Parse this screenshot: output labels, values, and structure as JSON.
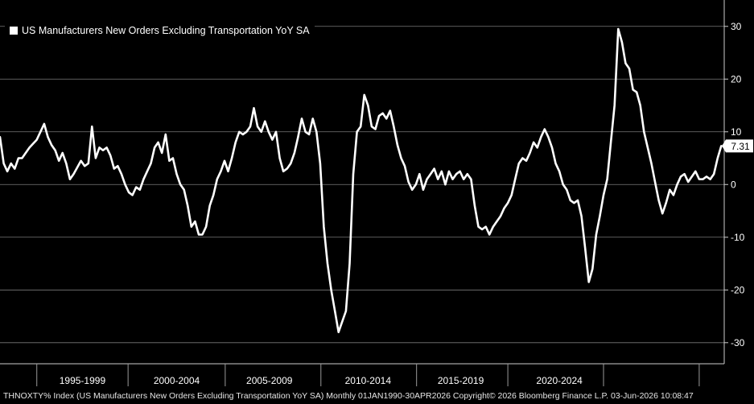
{
  "chart_data": {
    "type": "line",
    "ticker": "THNOXTY% Index",
    "series": [
      {
        "name": "US Manufacturers New Orders Excluding Transportation YoY SA",
        "color": "#ffffff",
        "points": [
          [
            1990.0,
            9.0
          ],
          [
            1990.25,
            4.0
          ],
          [
            1990.5,
            2.5
          ],
          [
            1990.75,
            4.0
          ],
          [
            1991.0,
            3.0
          ],
          [
            1991.25,
            5.0
          ],
          [
            1991.5,
            5.0
          ],
          [
            1992.0,
            7.0
          ],
          [
            1992.5,
            8.5
          ],
          [
            1993.0,
            11.5
          ],
          [
            1993.25,
            9.0
          ],
          [
            1993.5,
            7.5
          ],
          [
            1993.75,
            6.5
          ],
          [
            1994.0,
            4.5
          ],
          [
            1994.25,
            6.0
          ],
          [
            1994.5,
            4.0
          ],
          [
            1994.75,
            1.0
          ],
          [
            1995.0,
            2.0
          ],
          [
            1995.5,
            4.5
          ],
          [
            1995.75,
            3.5
          ],
          [
            1996.0,
            4.0
          ],
          [
            1996.25,
            11.0
          ],
          [
            1996.5,
            5.0
          ],
          [
            1996.75,
            7.0
          ],
          [
            1997.0,
            6.5
          ],
          [
            1997.25,
            7.0
          ],
          [
            1997.5,
            5.5
          ],
          [
            1997.75,
            3.0
          ],
          [
            1998.0,
            3.5
          ],
          [
            1998.25,
            2.0
          ],
          [
            1998.5,
            0.0
          ],
          [
            1998.75,
            -1.5
          ],
          [
            1999.0,
            -2.0
          ],
          [
            1999.25,
            -0.5
          ],
          [
            1999.5,
            -1.0
          ],
          [
            1999.75,
            1.0
          ],
          [
            2000.0,
            2.5
          ],
          [
            2000.25,
            4.0
          ],
          [
            2000.5,
            7.0
          ],
          [
            2000.75,
            8.0
          ],
          [
            2001.0,
            6.0
          ],
          [
            2001.25,
            9.5
          ],
          [
            2001.5,
            4.5
          ],
          [
            2001.75,
            5.0
          ],
          [
            2002.0,
            2.0
          ],
          [
            2002.25,
            0.0
          ],
          [
            2002.5,
            -1.0
          ],
          [
            2002.75,
            -4.0
          ],
          [
            2003.0,
            -8.0
          ],
          [
            2003.25,
            -7.0
          ],
          [
            2003.5,
            -9.5
          ],
          [
            2003.75,
            -9.5
          ],
          [
            2004.0,
            -8.0
          ],
          [
            2004.25,
            -4.0
          ],
          [
            2004.5,
            -2.0
          ],
          [
            2004.75,
            1.0
          ],
          [
            2005.0,
            2.5
          ],
          [
            2005.25,
            4.5
          ],
          [
            2005.5,
            2.5
          ],
          [
            2005.75,
            5.0
          ],
          [
            2006.0,
            8.0
          ],
          [
            2006.25,
            10.0
          ],
          [
            2006.5,
            9.5
          ],
          [
            2006.75,
            10.0
          ],
          [
            2007.0,
            11.0
          ],
          [
            2007.25,
            14.5
          ],
          [
            2007.5,
            11.0
          ],
          [
            2007.75,
            10.0
          ],
          [
            2008.0,
            12.0
          ],
          [
            2008.25,
            10.0
          ],
          [
            2008.5,
            8.5
          ],
          [
            2008.75,
            10.0
          ],
          [
            2009.0,
            5.0
          ],
          [
            2009.25,
            2.5
          ],
          [
            2009.5,
            3.0
          ],
          [
            2009.75,
            4.0
          ],
          [
            2010.0,
            6.0
          ],
          [
            2010.25,
            9.0
          ],
          [
            2010.5,
            12.5
          ],
          [
            2010.75,
            10.0
          ],
          [
            2011.0,
            9.5
          ],
          [
            2011.25,
            12.5
          ],
          [
            2011.5,
            10.0
          ],
          [
            2011.75,
            4.0
          ],
          [
            2012.0,
            -8.0
          ],
          [
            2012.25,
            -15.0
          ],
          [
            2012.5,
            -20.0
          ],
          [
            2012.75,
            -24.0
          ],
          [
            2013.0,
            -28.0
          ],
          [
            2013.25,
            -26.0
          ],
          [
            2013.5,
            -24.0
          ],
          [
            2013.75,
            -15.0
          ],
          [
            2014.0,
            2.0
          ],
          [
            2014.25,
            10.0
          ],
          [
            2014.5,
            11.0
          ],
          [
            2014.75,
            17.0
          ],
          [
            2015.0,
            15.0
          ],
          [
            2015.25,
            11.0
          ],
          [
            2015.5,
            10.5
          ],
          [
            2015.75,
            13.0
          ],
          [
            2016.0,
            13.5
          ],
          [
            2016.25,
            12.5
          ],
          [
            2016.5,
            14.0
          ],
          [
            2016.75,
            11.0
          ],
          [
            2017.0,
            7.5
          ],
          [
            2017.25,
            5.0
          ],
          [
            2017.5,
            3.5
          ],
          [
            2017.75,
            0.5
          ],
          [
            2018.0,
            -1.0
          ],
          [
            2018.25,
            0.0
          ],
          [
            2018.5,
            2.0
          ],
          [
            2018.75,
            -1.0
          ],
          [
            2019.0,
            1.0
          ],
          [
            2019.25,
            2.0
          ],
          [
            2019.5,
            3.0
          ],
          [
            2019.75,
            1.0
          ],
          [
            2020.0,
            2.5
          ],
          [
            2020.25,
            0.0
          ],
          [
            2020.5,
            2.5
          ],
          [
            2020.75,
            1.0
          ],
          [
            2021.0,
            2.0
          ],
          [
            2021.25,
            2.5
          ],
          [
            2021.5,
            1.0
          ],
          [
            2021.75,
            2.0
          ],
          [
            2022.0,
            1.0
          ],
          [
            2022.25,
            -4.0
          ],
          [
            2022.5,
            -8.0
          ],
          [
            2022.75,
            -8.5
          ],
          [
            2023.0,
            -8.0
          ],
          [
            2023.25,
            -9.5
          ],
          [
            2023.5,
            -8.0
          ],
          [
            2023.75,
            -7.0
          ],
          [
            2024.0,
            -6.0
          ],
          [
            2024.25,
            -4.5
          ],
          [
            2024.5,
            -3.5
          ],
          [
            2024.75,
            -2.0
          ],
          [
            2025.0,
            1.0
          ],
          [
            2025.25,
            4.0
          ],
          [
            2025.5,
            5.0
          ],
          [
            2025.75,
            4.5
          ],
          [
            2026.0,
            6.0
          ],
          [
            2026.25,
            8.0
          ],
          [
            2026.5,
            7.0
          ],
          [
            2026.75,
            9.0
          ],
          [
            2027.0,
            10.5
          ],
          [
            2027.25,
            9.0
          ],
          [
            2027.5,
            7.0
          ],
          [
            2027.75,
            4.0
          ],
          [
            2028.0,
            2.5
          ],
          [
            2028.25,
            0.0
          ],
          [
            2028.5,
            -1.0
          ],
          [
            2028.75,
            -3.0
          ],
          [
            2029.0,
            -3.5
          ],
          [
            2029.25,
            -3.0
          ],
          [
            2029.5,
            -6.0
          ],
          [
            2029.75,
            -12.0
          ],
          [
            2030.0,
            -18.5
          ],
          [
            2030.25,
            -16.0
          ],
          [
            2030.5,
            -9.5
          ],
          [
            2030.75,
            -6.0
          ],
          [
            2031.0,
            -2.0
          ],
          [
            2031.25,
            1.0
          ],
          [
            2031.5,
            8.0
          ],
          [
            2031.75,
            15.0
          ],
          [
            2032.0,
            29.5
          ],
          [
            2032.25,
            27.0
          ],
          [
            2032.5,
            23.0
          ],
          [
            2032.75,
            22.0
          ],
          [
            2033.0,
            18.0
          ],
          [
            2033.25,
            17.5
          ],
          [
            2033.5,
            15.0
          ],
          [
            2033.75,
            10.0
          ],
          [
            2034.0,
            7.0
          ],
          [
            2034.25,
            4.0
          ],
          [
            2034.5,
            0.5
          ],
          [
            2034.75,
            -3.0
          ],
          [
            2035.0,
            -5.5
          ],
          [
            2035.25,
            -3.5
          ],
          [
            2035.5,
            -1.0
          ],
          [
            2035.75,
            -2.0
          ],
          [
            2036.0,
            0.0
          ],
          [
            2036.25,
            1.5
          ],
          [
            2036.5,
            2.0
          ],
          [
            2036.75,
            0.5
          ],
          [
            2037.0,
            1.5
          ],
          [
            2037.25,
            2.5
          ],
          [
            2037.5,
            1.0
          ],
          [
            2037.75,
            1.0
          ],
          [
            2038.0,
            1.5
          ],
          [
            2038.25,
            1.0
          ],
          [
            2038.5,
            2.0
          ],
          [
            2038.75,
            5.0
          ],
          [
            2039.0,
            7.31
          ]
        ]
      }
    ],
    "last_value_label": "7.31",
    "y_ticks": [
      30,
      20,
      10,
      0,
      -10,
      -20,
      -30
    ],
    "ylim": [
      -34,
      35
    ],
    "xlim": [
      1990.0,
      2039.2
    ],
    "x_tick_labels": [
      {
        "label": "1995-1999",
        "at": 1995.6
      },
      {
        "label": "2000-2004",
        "at": 2002.0
      },
      {
        "label": "2005-2009",
        "at": 2008.3
      },
      {
        "label": "2010-2014",
        "at": 2015.0
      },
      {
        "label": "2015-2019",
        "at": 2021.3
      },
      {
        "label": "2020-2024",
        "at": 2028.0
      }
    ],
    "x_separators": [
      1992.5,
      1998.7,
      2005.3,
      2011.8,
      2018.3,
      2024.5,
      2031.0,
      2037.5
    ],
    "grid": true,
    "legend_position": "top-left",
    "footer": "THNOXTY% Index (US Manufacturers New Orders Excluding Transportation YoY SA) Monthly 01JAN1990-30APR2026  Copyright© 2026 Bloomberg Finance L.P.  03-Jun-2026 10:08:47"
  }
}
